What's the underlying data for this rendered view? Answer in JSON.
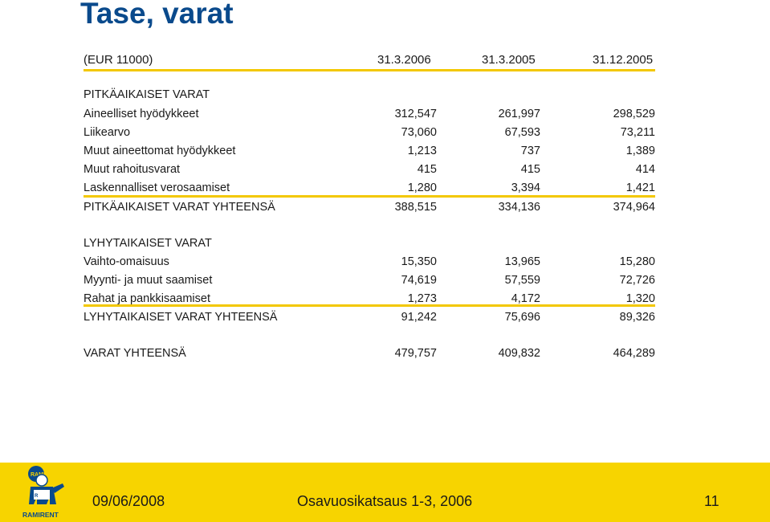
{
  "title": "Tase, varat",
  "header": {
    "unit": "(EUR 11000)",
    "col1": "31.3.2006",
    "col2": "31.3.2005",
    "col3": "31.12.2005"
  },
  "section1": {
    "heading": "PITKÄAIKAISET VARAT",
    "rows": [
      {
        "label": "Aineelliset hyödykkeet",
        "v1": "312,547",
        "v2": "261,997",
        "v3": "298,529"
      },
      {
        "label": "Liikearvo",
        "v1": "73,060",
        "v2": "67,593",
        "v3": "73,211"
      },
      {
        "label": "Muut aineettomat hyödykkeet",
        "v1": "1,213",
        "v2": "737",
        "v3": "1,389"
      },
      {
        "label": "Muut rahoitusvarat",
        "v1": "415",
        "v2": "415",
        "v3": "414"
      },
      {
        "label": "Laskennalliset verosaamiset",
        "v1": "1,280",
        "v2": "3,394",
        "v3": "1,421"
      }
    ],
    "total": {
      "label": "PITKÄAIKAISET VARAT YHTEENSÄ",
      "v1": "388,515",
      "v2": "334,136",
      "v3": "374,964"
    }
  },
  "section2": {
    "heading": "LYHYTAIKAISET VARAT",
    "rows": [
      {
        "label": "Vaihto-omaisuus",
        "v1": "15,350",
        "v2": "13,965",
        "v3": "15,280"
      },
      {
        "label": "Myynti- ja muut saamiset",
        "v1": "74,619",
        "v2": "57,559",
        "v3": "72,726"
      },
      {
        "label": "Rahat ja pankkisaamiset",
        "v1": "1,273",
        "v2": "4,172",
        "v3": "1,320"
      }
    ],
    "total": {
      "label": "LYHYTAIKAISET VARAT YHTEENSÄ",
      "v1": "91,242",
      "v2": "75,696",
      "v3": "89,326"
    }
  },
  "grand_total": {
    "label": "VARAT YHTEENSÄ",
    "v1": "479,757",
    "v2": "409,832",
    "v3": "464,289"
  },
  "footer": {
    "date": "09/06/2008",
    "title": "Osavuosikatsaus 1-3, 2006",
    "page": "11",
    "logo_text": "RAMIRENT",
    "logo_badge": "RAMI",
    "brand_color": "#f7d400",
    "accent": "#0a4a8c"
  }
}
